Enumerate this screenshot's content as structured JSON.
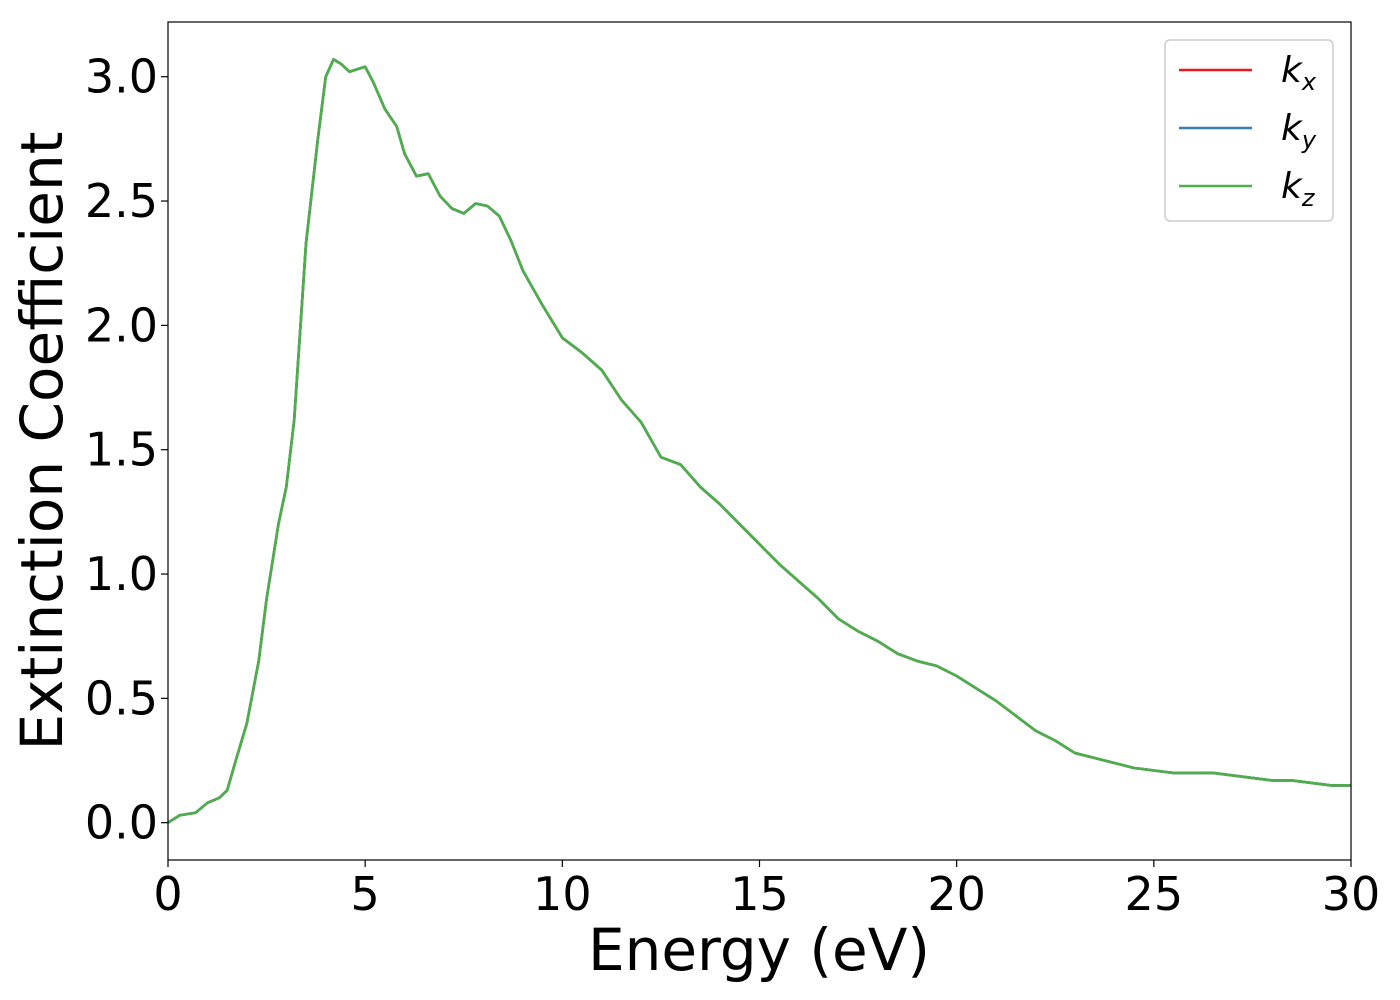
{
  "chart_data": {
    "type": "line",
    "title": "",
    "xlabel": "Energy (eV)",
    "ylabel": "Extinction Coefficient",
    "xlim": [
      0,
      30
    ],
    "ylim": [
      -0.15,
      3.22
    ],
    "xticks": [
      0,
      5,
      10,
      15,
      20,
      25,
      30
    ],
    "yticks": [
      0.0,
      0.5,
      1.0,
      1.5,
      2.0,
      2.5,
      3.0
    ],
    "xtick_labels": [
      "0",
      "5",
      "10",
      "15",
      "20",
      "25",
      "30"
    ],
    "ytick_labels": [
      "0.0",
      "0.5",
      "1.0",
      "1.5",
      "2.0",
      "2.5",
      "3.0"
    ],
    "grid": false,
    "legend_position": "top-right",
    "series": [
      {
        "name": "k",
        "subscript": "x",
        "color": "#e41a1c"
      },
      {
        "name": "k",
        "subscript": "y",
        "color": "#377eb8"
      },
      {
        "name": "k",
        "subscript": "z",
        "color": "#4daf4a"
      }
    ],
    "x": [
      0,
      0.3,
      0.7,
      1.0,
      1.3,
      1.5,
      1.7,
      2.0,
      2.3,
      2.5,
      2.8,
      3.0,
      3.2,
      3.5,
      3.8,
      4.0,
      4.2,
      4.4,
      4.6,
      4.8,
      5.0,
      5.2,
      5.5,
      5.8,
      6.0,
      6.3,
      6.6,
      6.9,
      7.2,
      7.5,
      7.8,
      8.1,
      8.4,
      8.7,
      9.0,
      9.5,
      10.0,
      10.5,
      11.0,
      11.5,
      12.0,
      12.5,
      13.0,
      13.5,
      14.0,
      14.5,
      15.0,
      15.5,
      16.0,
      16.5,
      17.0,
      17.5,
      18.0,
      18.5,
      19.0,
      19.5,
      20.0,
      20.5,
      21.0,
      21.5,
      22.0,
      22.5,
      23.0,
      23.5,
      24.0,
      24.5,
      25.0,
      25.5,
      26.0,
      26.5,
      27.0,
      27.5,
      28.0,
      28.5,
      29.0,
      29.5,
      30.0
    ],
    "values": [
      0.0,
      0.03,
      0.04,
      0.08,
      0.1,
      0.13,
      0.24,
      0.4,
      0.65,
      0.9,
      1.2,
      1.35,
      1.62,
      2.33,
      2.75,
      3.0,
      3.07,
      3.05,
      3.02,
      3.03,
      3.04,
      2.98,
      2.87,
      2.8,
      2.69,
      2.6,
      2.61,
      2.52,
      2.47,
      2.45,
      2.49,
      2.48,
      2.44,
      2.34,
      2.22,
      2.08,
      1.95,
      1.89,
      1.82,
      1.7,
      1.61,
      1.47,
      1.44,
      1.35,
      1.28,
      1.2,
      1.12,
      1.04,
      0.97,
      0.9,
      0.82,
      0.77,
      0.73,
      0.68,
      0.65,
      0.63,
      0.59,
      0.54,
      0.49,
      0.43,
      0.37,
      0.33,
      0.28,
      0.26,
      0.24,
      0.22,
      0.21,
      0.2,
      0.2,
      0.2,
      0.19,
      0.18,
      0.17,
      0.17,
      0.16,
      0.15,
      0.15
    ]
  }
}
